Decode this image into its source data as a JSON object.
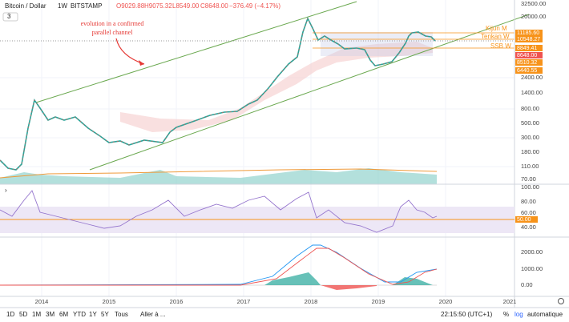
{
  "header": {
    "symbol": "Bitcoin / Dollar",
    "interval": "1W",
    "exchange": "BITSTAMP",
    "open": "O9029.88",
    "high": "H9075.32",
    "low": "L8549.00",
    "close": "C8648.00",
    "change": "−376.49 (−4.17%)",
    "collapse": "3"
  },
  "annotation": {
    "line1": "evolution in a confirmed",
    "line2": "parallel channel"
  },
  "price_axis": [
    "32500.00",
    "20000.00",
    "2400.00",
    "1400.00",
    "800.00",
    "500.00",
    "300.00",
    "180.00",
    "110.00",
    "70.00"
  ],
  "price_boxes": [
    "11185.60",
    "10548.27",
    "8849.41",
    "8648.00",
    "8510.32",
    "6440.55"
  ],
  "line_labels": [
    "Kijun M",
    "Tenkan W",
    "SSB W"
  ],
  "rsi_axis": [
    "100.00",
    "80.00",
    "60.00",
    "50.00",
    "40.00"
  ],
  "macd_axis": [
    "2000.00",
    "1000.00",
    "0.00"
  ],
  "time_axis": [
    "2014",
    "2015",
    "2016",
    "2017",
    "2018",
    "2019",
    "2020",
    "2021"
  ],
  "toolbar": {
    "ranges": [
      "1D",
      "5D",
      "1M",
      "3M",
      "6M",
      "YTD",
      "1Y",
      "5Y",
      "Tous"
    ],
    "goto": "Aller à ...",
    "clock": "22:15:50 (UTC+1)",
    "percent": "%",
    "log": "log",
    "auto": "automatique"
  }
}
